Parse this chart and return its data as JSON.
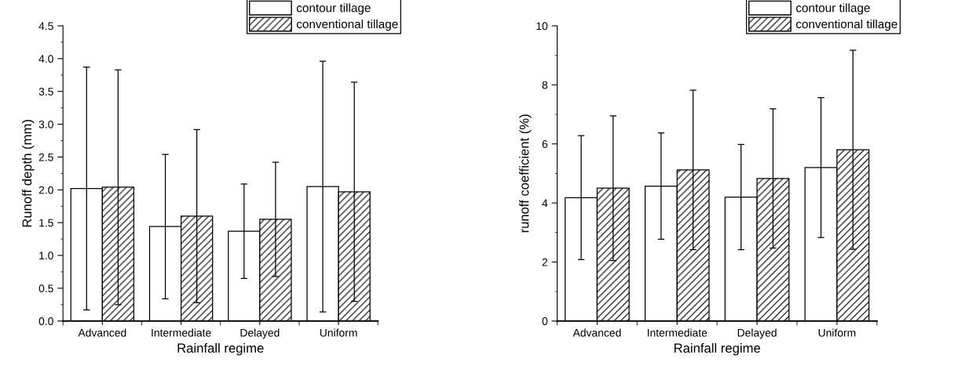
{
  "chart_data": [
    {
      "type": "bar",
      "xlabel": "Rainfall regime",
      "ylabel": "Runoff depth (mm)",
      "categories": [
        "Advanced",
        "Intermediate",
        "Delayed",
        "Uniform"
      ],
      "series": [
        {
          "name": "contour tillage",
          "color": "#ffffff",
          "values": [
            2.02,
            1.44,
            1.37,
            2.05
          ],
          "errors": [
            1.85,
            1.1,
            0.72,
            1.91
          ]
        },
        {
          "name": "conventional tillage",
          "color": "#000000",
          "values": [
            2.04,
            1.6,
            1.55,
            1.97
          ],
          "errors": [
            1.79,
            1.32,
            0.87,
            1.67
          ]
        }
      ],
      "ylim": [
        0,
        4.5
      ],
      "yticks": [
        {
          "value": 0,
          "label": "0.0"
        },
        0.5,
        {
          "value": 1,
          "label": "1.0"
        },
        1.5,
        {
          "value": 2,
          "label": "2.0"
        },
        2.5,
        {
          "value": 3,
          "label": "3.0"
        },
        3.5,
        {
          "value": 4,
          "label": "4.0"
        },
        4.5
      ],
      "legend": "top right",
      "grid": false
    },
    {
      "type": "bar",
      "xlabel": "Rainfall regime",
      "ylabel": "runoff coefficient (%)",
      "categories": [
        "Advanced",
        "Intermediate",
        "Delayed",
        "Uniform"
      ],
      "series": [
        {
          "name": "contour tillage",
          "color": "#ffffff",
          "values": [
            4.18,
            4.57,
            4.2,
            5.2
          ],
          "errors": [
            2.1,
            1.8,
            1.78,
            2.37
          ]
        },
        {
          "name": "conventional tillage",
          "color": "#000000",
          "values": [
            4.5,
            5.12,
            4.83,
            5.8
          ],
          "errors": [
            2.45,
            2.7,
            2.36,
            3.37
          ]
        }
      ],
      "ylim": [
        0,
        10
      ],
      "yticks": [
        0,
        2,
        4,
        6,
        8,
        10
      ],
      "legend": "top right",
      "grid": false
    }
  ]
}
